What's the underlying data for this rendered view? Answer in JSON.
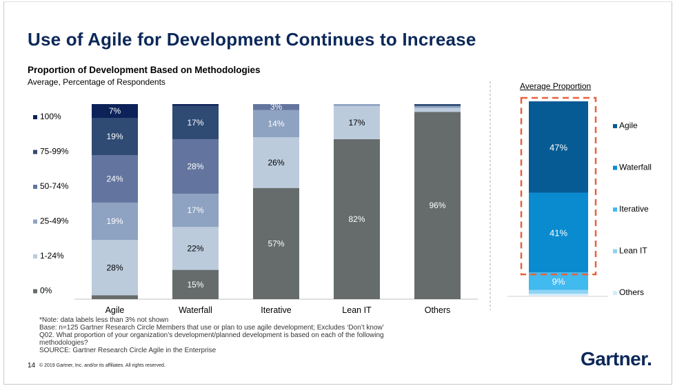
{
  "title": "Use of Agile for Development Continues to Increase",
  "subtitle": "Proportion of Development Based on Methodologies",
  "subsubtitle": "Average, Percentage of Respondents",
  "avg_title": "Average Proportion",
  "notes": [
    "*Note: data labels less than 3% not shown",
    "Base: n=125 Gartner Research Circle Members that use or plan to use agile development; Excludes ‘Don’t know’",
    "Q02. What proportion of your organization’s development/planned development is based on each of the following methodologies?",
    "SOURCE: Gartner Research Circle Agile in the Enterprise"
  ],
  "page_number": "14",
  "copyright": "© 2019 Gartner, Inc. and/or its affiliates. All rights reserved.",
  "logo_text": "Gartner.",
  "chart_data": [
    {
      "type": "bar",
      "stacked": true,
      "title": "Proportion of Development Based on Methodologies",
      "subtitle": "Average, Percentage of Respondents",
      "categories": [
        "Agile",
        "Waterfall",
        "Iterative",
        "Lean IT",
        "Others"
      ],
      "legend_position": "left",
      "series": [
        {
          "name": "0%",
          "color": "#666c6c",
          "values": [
            2,
            15,
            57,
            82,
            96
          ],
          "labels": [
            "",
            "15%",
            "57%",
            "82%",
            "96%"
          ]
        },
        {
          "name": "1-24%",
          "color": "#bccbdc",
          "values": [
            28,
            22,
            26,
            17,
            2
          ],
          "labels": [
            "28%",
            "22%",
            "26%",
            "17%",
            ""
          ]
        },
        {
          "name": "25-49%",
          "color": "#8ea2c1",
          "values": [
            19,
            17,
            14,
            1,
            1
          ],
          "labels": [
            "19%",
            "17%",
            "14%",
            "",
            ""
          ]
        },
        {
          "name": "50-74%",
          "color": "#63759e",
          "values": [
            24,
            28,
            3,
            0,
            0
          ],
          "labels": [
            "24%",
            "28%",
            "3%",
            "",
            ""
          ]
        },
        {
          "name": "75-99%",
          "color": "#2f4a73",
          "values": [
            19,
            17,
            0,
            0,
            1
          ],
          "labels": [
            "19%",
            "17%",
            "",
            "",
            ""
          ]
        },
        {
          "name": "100%",
          "color": "#0c2258",
          "values": [
            7,
            1,
            0,
            0,
            0
          ],
          "labels": [
            "7%",
            "",
            "",
            "",
            ""
          ]
        }
      ],
      "label_colors": {
        "0%": "#ffffff",
        "1-24%": "#000000",
        "25-49%": "#ffffff",
        "50-74%": "#ffffff",
        "75-99%": "#ffffff",
        "100%": "#ffffff"
      }
    },
    {
      "type": "bar",
      "stacked": true,
      "title": "Average Proportion",
      "legend_position": "right",
      "series": [
        {
          "name": "Others",
          "color": "#d3ecf9",
          "value": 1,
          "label": ""
        },
        {
          "name": "Lean IT",
          "color": "#8fd3f3",
          "value": 2,
          "label": ""
        },
        {
          "name": "Iterative",
          "color": "#41baf0",
          "value": 9,
          "label": "9%"
        },
        {
          "name": "Waterfall",
          "color": "#0a8bd0",
          "value": 41,
          "label": "41%"
        },
        {
          "name": "Agile",
          "color": "#075b95",
          "value": 47,
          "label": "47%"
        }
      ],
      "highlight_color": "#e8603a"
    }
  ]
}
